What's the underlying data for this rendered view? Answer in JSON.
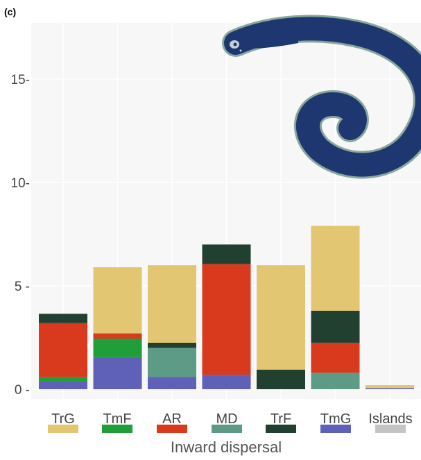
{
  "panel_label": "(c)",
  "chart_data": {
    "type": "bar",
    "stacked": true,
    "title": "",
    "xlabel": "Inward dispersal",
    "ylabel": "",
    "ylim": [
      0,
      17.5
    ],
    "yticks": [
      0,
      5,
      10,
      15
    ],
    "ytick_labels": [
      "0 -",
      "5 -",
      "10-",
      "15-"
    ],
    "grid": true,
    "legend_placement": "bottom",
    "categories": [
      "",
      "",
      "",
      "",
      "",
      "",
      ""
    ],
    "series": [
      {
        "name": "TmG",
        "color": "#5f61b8",
        "values": [
          0.4,
          1.55,
          0.6,
          0.7,
          0,
          0,
          0.05
        ]
      },
      {
        "name": "MD",
        "color": "#5e9b86",
        "values": [
          0,
          0,
          1.4,
          0,
          0,
          0.8,
          0
        ]
      },
      {
        "name": "TmF",
        "color": "#1f9e3a",
        "values": [
          0.2,
          0.9,
          0,
          0,
          0,
          0,
          0
        ]
      },
      {
        "name": "AR",
        "color": "#d9391d",
        "values": [
          2.6,
          0.25,
          0,
          5.35,
          0,
          1.45,
          0
        ]
      },
      {
        "name": "TrF",
        "color": "#22402f",
        "values": [
          0.45,
          0,
          0.25,
          0.95,
          0.95,
          1.55,
          0
        ]
      },
      {
        "name": "TrG",
        "color": "#e2c672",
        "values": [
          0,
          3.2,
          3.75,
          0,
          5.05,
          4.1,
          0.15
        ]
      }
    ],
    "legend": [
      {
        "label": "TrG",
        "color": "#e2c672"
      },
      {
        "label": "TmF",
        "color": "#1f9e3a"
      },
      {
        "label": "AR",
        "color": "#d9391d"
      },
      {
        "label": "MD",
        "color": "#5e9b86"
      },
      {
        "label": "TrF",
        "color": "#22402f"
      },
      {
        "label": "TmG",
        "color": "#5f61b8"
      },
      {
        "label": "Islands",
        "color": "#c4c4c4"
      }
    ],
    "colors": {
      "panel_background": "#f7f7f7",
      "grid": "#ffffff",
      "snake_body": "#1e3770",
      "snake_belly": "#8aa79c"
    },
    "icon": "snake-illustration-icon"
  }
}
